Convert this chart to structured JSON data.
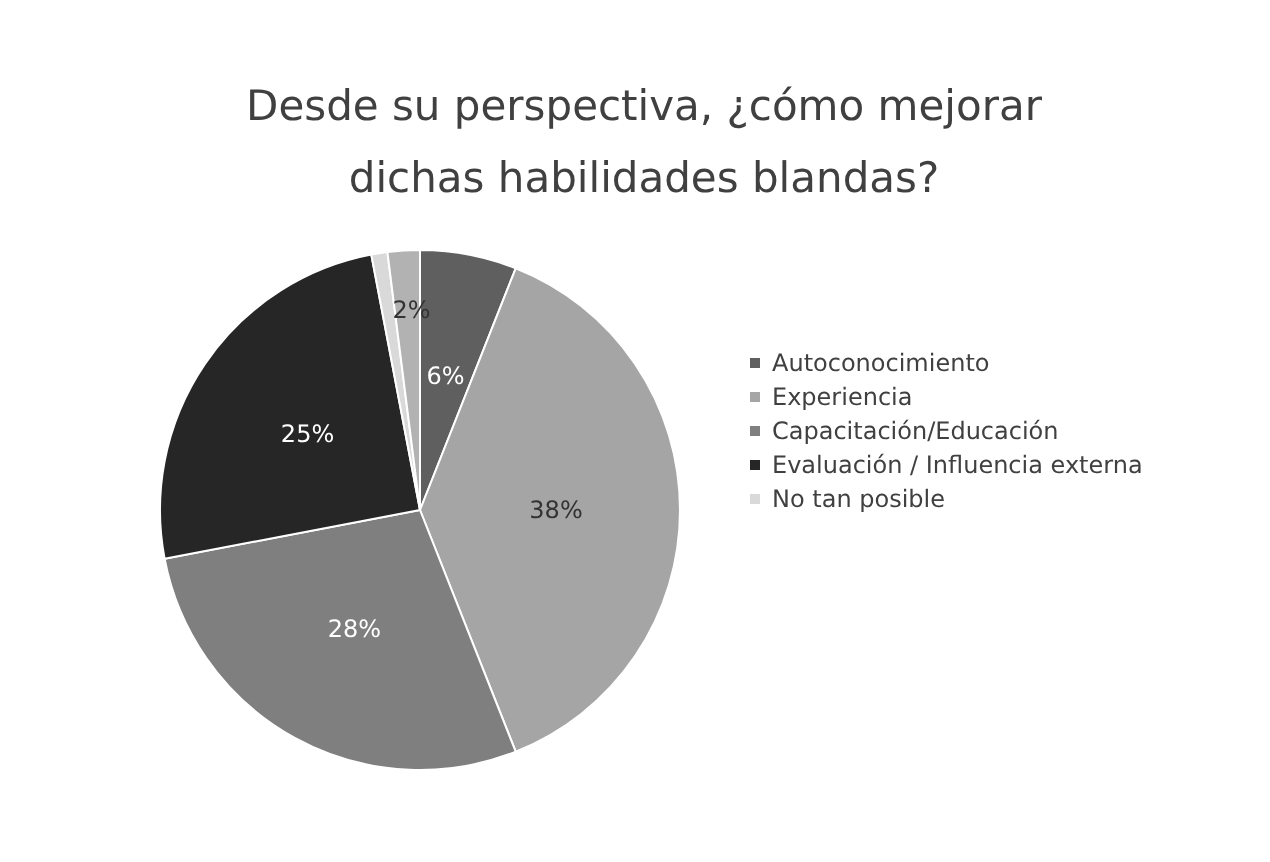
{
  "chart_data": {
    "type": "pie",
    "title": "Desde su perspectiva, ¿cómo mejorar\ndichas habilidades blandas?",
    "categories": [
      "Autoconocimiento",
      "Experiencia",
      "Capacitación/Educación",
      "Evaluación / Influencia externa",
      "No tan posible",
      null
    ],
    "values": [
      6,
      38,
      28,
      25,
      1,
      2
    ],
    "colors": [
      "#5f5f5f",
      "#a5a5a5",
      "#7f7f7f",
      "#262626",
      "#d9d9d9",
      "#b2b2b2"
    ],
    "value_labels": [
      "6%",
      "38%",
      "28%",
      "25%",
      null,
      "2%"
    ],
    "legend": "right"
  }
}
